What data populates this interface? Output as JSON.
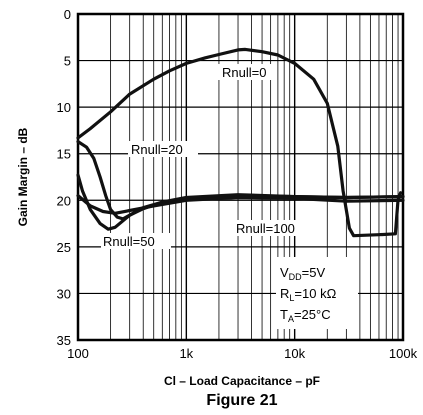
{
  "chart_data": {
    "type": "line",
    "xlabel": "Cl – Load Capacitance – pF",
    "ylabel": "Gain Margin – dB",
    "figure_caption": "Figure 21",
    "x_scale": "log",
    "xlim": [
      100,
      100000
    ],
    "ylim": [
      0,
      35
    ],
    "y_inverted": true,
    "grid": true,
    "x_ticks": [
      {
        "value": 100,
        "label": "100"
      },
      {
        "value": 1000,
        "label": "1k"
      },
      {
        "value": 10000,
        "label": "10k"
      },
      {
        "value": 100000,
        "label": "100k"
      }
    ],
    "y_ticks": [
      0,
      5,
      10,
      15,
      20,
      25,
      30,
      35
    ],
    "series": [
      {
        "name": "Rnull=0",
        "points": [
          [
            100,
            13.3
          ],
          [
            130,
            12.3
          ],
          [
            200,
            10.5
          ],
          [
            300,
            8.6
          ],
          [
            500,
            7.0
          ],
          [
            700,
            6.1
          ],
          [
            1000,
            5.3
          ],
          [
            1500,
            4.7
          ],
          [
            2000,
            4.35
          ],
          [
            3000,
            3.85
          ],
          [
            3500,
            3.8
          ],
          [
            5000,
            4.05
          ],
          [
            7000,
            4.4
          ],
          [
            10000,
            5.3
          ],
          [
            15000,
            7.0
          ],
          [
            20000,
            9.6
          ],
          [
            25000,
            14.2
          ],
          [
            28000,
            19.0
          ],
          [
            32000,
            23.0
          ],
          [
            35000,
            23.8
          ],
          [
            60000,
            23.7
          ],
          [
            85000,
            23.6
          ],
          [
            90000,
            20.0
          ],
          [
            95000,
            19.2
          ]
        ]
      },
      {
        "name": "Rnull=20",
        "points": [
          [
            100,
            13.7
          ],
          [
            120,
            14.3
          ],
          [
            140,
            15.5
          ],
          [
            160,
            17.5
          ],
          [
            180,
            19.5
          ],
          [
            200,
            21.0
          ],
          [
            230,
            21.8
          ],
          [
            260,
            22.0
          ],
          [
            300,
            21.6
          ],
          [
            400,
            20.8
          ],
          [
            600,
            20.2
          ],
          [
            1000,
            19.8
          ],
          [
            3000,
            19.5
          ],
          [
            10000,
            19.6
          ],
          [
            30000,
            19.7
          ],
          [
            100000,
            19.6
          ]
        ]
      },
      {
        "name": "Rnull=50",
        "points": [
          [
            100,
            17.3
          ],
          [
            110,
            19.0
          ],
          [
            130,
            21.0
          ],
          [
            160,
            22.5
          ],
          [
            190,
            23.1
          ],
          [
            220,
            22.9
          ],
          [
            300,
            21.6
          ],
          [
            400,
            20.9
          ],
          [
            600,
            20.2
          ],
          [
            1000,
            19.7
          ],
          [
            3000,
            19.4
          ],
          [
            10000,
            19.6
          ],
          [
            30000,
            19.7
          ],
          [
            100000,
            19.6
          ]
        ]
      },
      {
        "name": "Rnull=100",
        "points": [
          [
            100,
            19.5
          ],
          [
            130,
            20.6
          ],
          [
            170,
            21.2
          ],
          [
            220,
            21.4
          ],
          [
            300,
            21.1
          ],
          [
            500,
            20.6
          ],
          [
            1000,
            20.0
          ],
          [
            3000,
            19.7
          ],
          [
            10000,
            19.8
          ],
          [
            30000,
            20.1
          ],
          [
            100000,
            20.0
          ]
        ]
      }
    ],
    "annotations": [
      {
        "id": "rnull0",
        "text": "Rnull=0",
        "x": 2700,
        "y": 7.0
      },
      {
        "id": "rnull20",
        "text": "Rnull=20",
        "x": 270,
        "y": 15.9
      },
      {
        "id": "rnull50",
        "text": "Rnull=50",
        "x": 210,
        "y": 25.5
      },
      {
        "id": "rnull100",
        "text": "Rnull=100",
        "x": 6000,
        "y": 24.3
      }
    ],
    "conditions": [
      {
        "id": "vdd",
        "main": "V",
        "sub": "DD",
        "rest": "=5V"
      },
      {
        "id": "rl",
        "main": "R",
        "sub": "L",
        "rest": "=10 kΩ"
      },
      {
        "id": "ta",
        "main": "T",
        "sub": "A",
        "rest": "=25°C"
      }
    ]
  }
}
